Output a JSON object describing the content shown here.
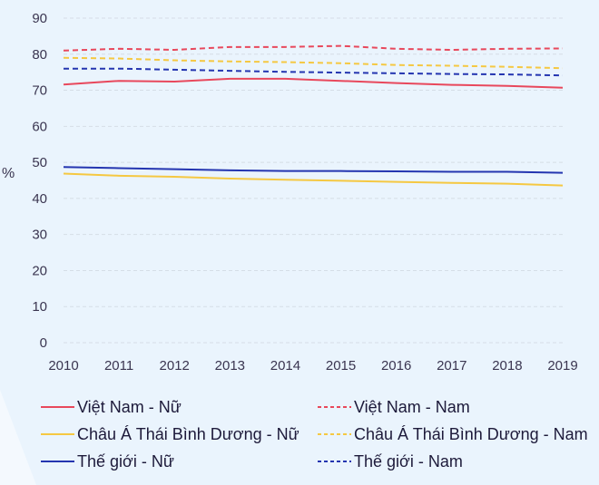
{
  "chart_data": {
    "type": "line",
    "title": "",
    "xlabel": "",
    "ylabel": "%",
    "ylim": [
      0,
      90
    ],
    "yticks": [
      0,
      10,
      20,
      30,
      40,
      50,
      60,
      70,
      80,
      90
    ],
    "x": [
      "2010",
      "2011",
      "2012",
      "2013",
      "2014",
      "2015",
      "2016",
      "2017",
      "2018",
      "2019"
    ],
    "grid": "horizontal dashed",
    "legend_placement": "bottom",
    "series": [
      {
        "name": "Việt Nam - Nữ",
        "color": "#e8485c",
        "dash": false,
        "values": [
          71.6,
          72.6,
          72.4,
          73.2,
          73.2,
          72.6,
          72.0,
          71.5,
          71.2,
          70.7
        ]
      },
      {
        "name": "Việt Nam - Nam",
        "color": "#e8485c",
        "dash": true,
        "values": [
          81.0,
          81.5,
          81.2,
          82.0,
          82.0,
          82.3,
          81.5,
          81.2,
          81.5,
          81.6
        ]
      },
      {
        "name": "Châu Á Thái Bình Dương - Nữ",
        "color": "#f5c842",
        "dash": false,
        "values": [
          46.9,
          46.3,
          46.0,
          45.5,
          45.2,
          44.9,
          44.6,
          44.3,
          44.1,
          43.6
        ]
      },
      {
        "name": "Châu Á Thái Bình Dương - Nam",
        "color": "#f5c842",
        "dash": true,
        "values": [
          79.0,
          78.8,
          78.3,
          78.0,
          77.8,
          77.5,
          77.0,
          76.8,
          76.5,
          76.1
        ]
      },
      {
        "name": "Thế giới - Nữ",
        "color": "#2435b0",
        "dash": false,
        "values": [
          48.7,
          48.4,
          48.1,
          47.8,
          47.6,
          47.6,
          47.5,
          47.4,
          47.4,
          47.1
        ]
      },
      {
        "name": "Thế giới - Nam",
        "color": "#2435b0",
        "dash": true,
        "values": [
          76.0,
          76.0,
          75.7,
          75.4,
          75.1,
          74.9,
          74.7,
          74.5,
          74.4,
          74.1
        ]
      }
    ]
  }
}
